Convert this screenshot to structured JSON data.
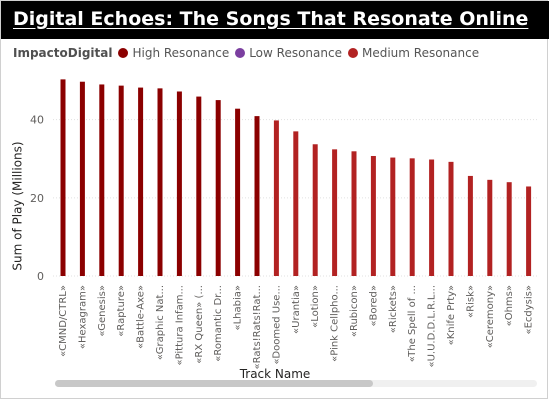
{
  "title": "Digital Echoes: The Songs That Resonate Online",
  "legend": {
    "title": "ImpactoDigital",
    "items": [
      {
        "label": "High Resonance",
        "color": "#8b0000"
      },
      {
        "label": "Low Resonance",
        "color": "#7b3fa0"
      },
      {
        "label": "Medium Resonance",
        "color": "#b22222"
      }
    ]
  },
  "chart_data": {
    "type": "bar",
    "title": "Digital Echoes: The Songs That Resonate Online",
    "xlabel": "Track Name",
    "ylabel": "Sum of Play (Millions)",
    "ylim": [
      0,
      55
    ],
    "yticks": [
      "0",
      "20",
      "40"
    ],
    "ytick_values": [
      0,
      20,
      40
    ],
    "grid": true,
    "legend_position": "top-left",
    "categories": [
      "«CMND/CTRL»",
      "«Hexagram»",
      "«Genesis»",
      "«Rapture»",
      "«Battle-Axe»",
      "«Graphic Nat...",
      "«Pittura Infam...",
      "«RX Queen» (...",
      "«Romantic Dr...",
      "«Lhabia»",
      "«Rats!Rats!Rat...",
      "«Doomed Use...",
      "«Urantia»",
      "«Lotion»",
      "«Pink Cellpho...",
      "«Rubicon»",
      "«Bored»",
      "«Rickets»",
      "«The Spell of ...",
      "«U.U.D.D.L.R.L...",
      "«Knife Prty»",
      "«Risk»",
      "«Ceremony»",
      "«Ohms»",
      "«Ecdysis»"
    ],
    "values": [
      50.3,
      49.7,
      49.0,
      48.7,
      48.2,
      48.0,
      47.2,
      45.9,
      45.0,
      42.8,
      40.9,
      39.8,
      37.0,
      33.7,
      32.4,
      31.9,
      30.7,
      30.3,
      30.1,
      29.8,
      29.2,
      25.6,
      24.6,
      24.0,
      22.9
    ],
    "groups": [
      "High Resonance",
      "High Resonance",
      "High Resonance",
      "High Resonance",
      "High Resonance",
      "High Resonance",
      "High Resonance",
      "High Resonance",
      "High Resonance",
      "High Resonance",
      "High Resonance",
      "Medium Resonance",
      "Medium Resonance",
      "Medium Resonance",
      "Medium Resonance",
      "Medium Resonance",
      "Medium Resonance",
      "Medium Resonance",
      "Medium Resonance",
      "Medium Resonance",
      "Medium Resonance",
      "Medium Resonance",
      "Medium Resonance",
      "Medium Resonance",
      "Medium Resonance"
    ]
  }
}
